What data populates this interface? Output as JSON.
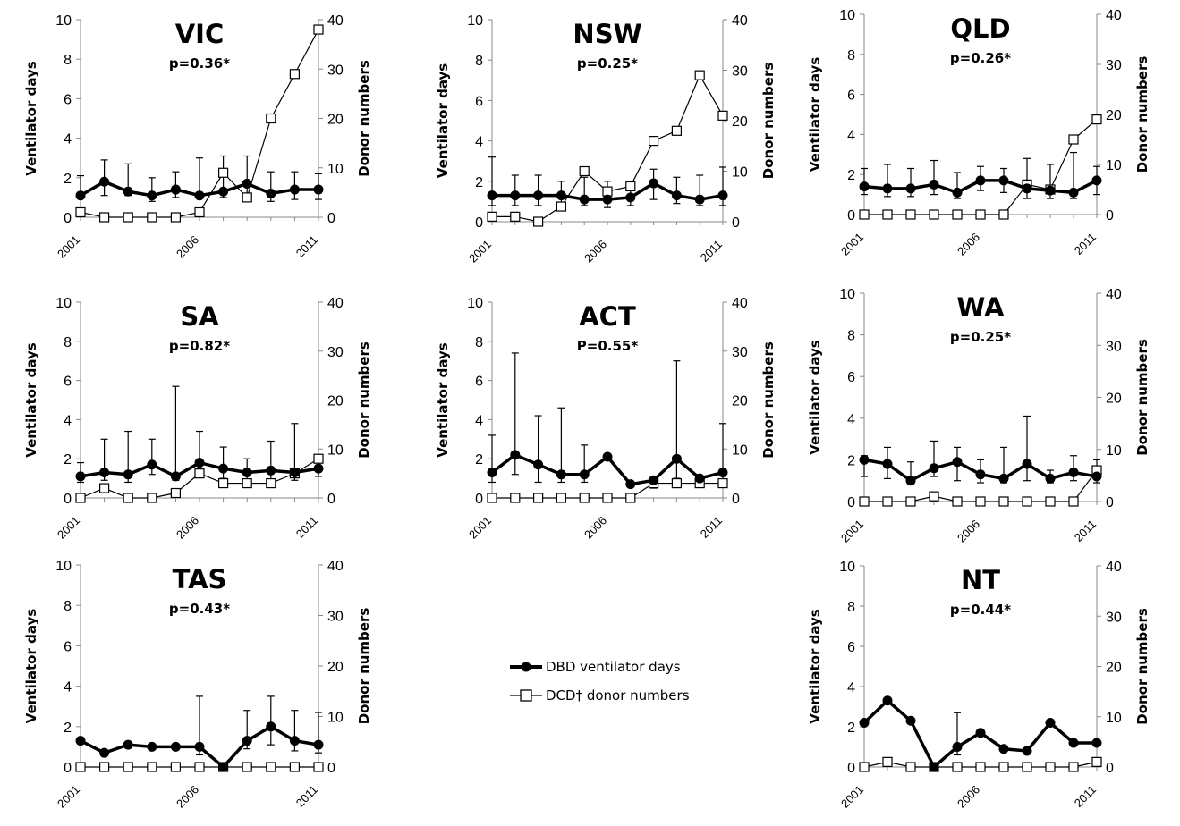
{
  "chart_data": [
    {
      "type": "line",
      "title": "VIC",
      "subtitle": "p=0.36*",
      "ylabel": "Ventilator days",
      "y2label": "Donor numbers",
      "ylim": [
        0,
        10
      ],
      "y2lim": [
        0,
        40
      ],
      "yticks": [
        "0",
        "2",
        "4",
        "6",
        "8",
        "10"
      ],
      "y2ticks": [
        "0",
        "10",
        "20",
        "30",
        "40"
      ],
      "xticks": [
        "2001",
        "2006",
        "2011"
      ],
      "x": [
        2001,
        2002,
        2003,
        2004,
        2005,
        2006,
        2007,
        2008,
        2009,
        2010,
        2011
      ],
      "series": [
        {
          "name": "DBD ventilator days",
          "axis": "left",
          "values": [
            1.1,
            1.8,
            1.3,
            1.1,
            1.4,
            1.1,
            1.3,
            1.7,
            1.2,
            1.4,
            1.4
          ],
          "error_upper": [
            2.1,
            2.9,
            2.7,
            2.0,
            2.3,
            3.0,
            3.1,
            3.1,
            2.3,
            2.3,
            2.2
          ],
          "error_lower": [
            1.1,
            1.1,
            1.1,
            0.8,
            1.0,
            1.1,
            1.0,
            1.0,
            0.8,
            0.9,
            0.9
          ]
        },
        {
          "name": "DCD† donor numbers",
          "axis": "right",
          "values": [
            1,
            0,
            0,
            0,
            0,
            1,
            9,
            4,
            20,
            29,
            38
          ]
        }
      ]
    },
    {
      "type": "line",
      "title": "NSW",
      "subtitle": "p=0.25*",
      "ylabel": "Ventilator days",
      "y2label": "Donor numbers",
      "ylim": [
        0,
        10
      ],
      "y2lim": [
        0,
        40
      ],
      "yticks": [
        "0",
        "2",
        "4",
        "6",
        "8",
        "10"
      ],
      "y2ticks": [
        "0",
        "10",
        "20",
        "30",
        "40"
      ],
      "xticks": [
        "2001",
        "2006",
        "2011"
      ],
      "x": [
        2001,
        2002,
        2003,
        2004,
        2005,
        2006,
        2007,
        2008,
        2009,
        2010,
        2011
      ],
      "series": [
        {
          "name": "DBD ventilator days",
          "axis": "left",
          "values": [
            1.3,
            1.3,
            1.3,
            1.3,
            1.1,
            1.1,
            1.2,
            1.9,
            1.3,
            1.1,
            1.3
          ],
          "error_upper": [
            3.2,
            2.3,
            2.3,
            2.0,
            2.2,
            2.0,
            2.0,
            2.6,
            2.2,
            2.3,
            2.7
          ],
          "error_lower": [
            0.8,
            0.8,
            0.8,
            0.9,
            0.8,
            0.7,
            0.8,
            1.1,
            0.9,
            0.8,
            0.8
          ]
        },
        {
          "name": "DCD† donor numbers",
          "axis": "right",
          "values": [
            1,
            1,
            0,
            3,
            10,
            6,
            7,
            16,
            18,
            29,
            21
          ]
        }
      ]
    },
    {
      "type": "line",
      "title": "QLD",
      "subtitle": "p=0.26*",
      "ylabel": "Ventilator days",
      "y2label": "Donor numbers",
      "ylim": [
        0,
        10
      ],
      "y2lim": [
        0,
        40
      ],
      "yticks": [
        "0",
        "2",
        "4",
        "6",
        "8",
        "10"
      ],
      "y2ticks": [
        "0",
        "10",
        "20",
        "30",
        "40"
      ],
      "xticks": [
        "2001",
        "2006",
        "2011"
      ],
      "x": [
        2001,
        2002,
        2003,
        2004,
        2005,
        2006,
        2007,
        2008,
        2009,
        2010,
        2011
      ],
      "series": [
        {
          "name": "DBD ventilator days",
          "axis": "left",
          "values": [
            1.4,
            1.3,
            1.3,
            1.5,
            1.1,
            1.7,
            1.7,
            1.3,
            1.2,
            1.1,
            1.7
          ],
          "error_upper": [
            2.3,
            2.5,
            2.3,
            2.7,
            2.1,
            2.4,
            2.3,
            2.8,
            2.5,
            3.1,
            2.4
          ],
          "error_lower": [
            1.0,
            0.9,
            0.9,
            1.0,
            0.8,
            1.2,
            1.1,
            0.8,
            0.8,
            0.8,
            1.0
          ]
        },
        {
          "name": "DCD† donor numbers",
          "axis": "right",
          "values": [
            0,
            0,
            0,
            0,
            0,
            0,
            0,
            6,
            5,
            15,
            19
          ]
        }
      ]
    },
    {
      "type": "line",
      "title": "SA",
      "subtitle": "p=0.82*",
      "ylabel": "Ventilator days",
      "y2label": "Donor numbers",
      "ylim": [
        0,
        10
      ],
      "y2lim": [
        0,
        40
      ],
      "yticks": [
        "0",
        "2",
        "4",
        "6",
        "8",
        "10"
      ],
      "y2ticks": [
        "0",
        "10",
        "20",
        "30",
        "40"
      ],
      "xticks": [
        "2001",
        "2006",
        "2011"
      ],
      "x": [
        2001,
        2002,
        2003,
        2004,
        2005,
        2006,
        2007,
        2008,
        2009,
        2010,
        2011
      ],
      "series": [
        {
          "name": "DBD ventilator days",
          "axis": "left",
          "values": [
            1.1,
            1.3,
            1.2,
            1.7,
            1.1,
            1.8,
            1.5,
            1.3,
            1.4,
            1.3,
            1.5
          ],
          "error_upper": [
            1.8,
            3.0,
            3.4,
            3.0,
            5.7,
            3.4,
            2.6,
            2.0,
            2.9,
            3.8,
            1.8
          ],
          "error_lower": [
            0.8,
            0.9,
            0.8,
            1.2,
            0.9,
            1.3,
            1.0,
            0.9,
            0.9,
            0.9,
            1.1
          ]
        },
        {
          "name": "DCD† donor numbers",
          "axis": "right",
          "values": [
            0,
            2,
            0,
            0,
            1,
            5,
            3,
            3,
            3,
            5,
            8
          ]
        }
      ]
    },
    {
      "type": "line",
      "title": "ACT",
      "subtitle": "P=0.55*",
      "ylabel": "Ventilator days",
      "y2label": "Donor numbers",
      "ylim": [
        0,
        10
      ],
      "y2lim": [
        0,
        40
      ],
      "yticks": [
        "0",
        "2",
        "4",
        "6",
        "8",
        "10"
      ],
      "y2ticks": [
        "0",
        "10",
        "20",
        "30",
        "40"
      ],
      "xticks": [
        "2001",
        "2006",
        "2011"
      ],
      "x": [
        2001,
        2002,
        2003,
        2004,
        2005,
        2006,
        2007,
        2008,
        2009,
        2010,
        2011
      ],
      "series": [
        {
          "name": "DBD ventilator days",
          "axis": "left",
          "values": [
            1.3,
            2.2,
            1.7,
            1.2,
            1.2,
            2.1,
            0.7,
            0.9,
            2.0,
            1.0,
            1.3
          ],
          "error_upper": [
            3.2,
            7.4,
            4.2,
            4.6,
            2.7,
            2.1,
            0.7,
            1.0,
            7.0,
            1.0,
            3.8
          ],
          "error_lower": [
            0.8,
            1.2,
            0.8,
            0.8,
            0.8,
            2.1,
            0.7,
            0.5,
            1.0,
            0.8,
            0.9
          ]
        },
        {
          "name": "DCD† donor numbers",
          "axis": "right",
          "values": [
            0,
            0,
            0,
            0,
            0,
            0,
            0,
            3,
            3,
            3,
            3
          ]
        }
      ]
    },
    {
      "type": "line",
      "title": "WA",
      "subtitle": "p=0.25*",
      "ylabel": "Ventilator days",
      "y2label": "Donor numbers",
      "ylim": [
        0,
        10
      ],
      "y2lim": [
        0,
        40
      ],
      "yticks": [
        "0",
        "2",
        "4",
        "6",
        "8",
        "10"
      ],
      "y2ticks": [
        "0",
        "10",
        "20",
        "30",
        "40"
      ],
      "xticks": [
        "2001",
        "2006",
        "2011"
      ],
      "x": [
        2001,
        2002,
        2003,
        2004,
        2005,
        2006,
        2007,
        2008,
        2009,
        2010,
        2011
      ],
      "series": [
        {
          "name": "DBD ventilator days",
          "axis": "left",
          "values": [
            2.0,
            1.8,
            1.0,
            1.6,
            1.9,
            1.3,
            1.1,
            1.8,
            1.1,
            1.4,
            1.2
          ],
          "error_upper": [
            2.2,
            2.6,
            1.9,
            2.9,
            2.6,
            2.0,
            2.6,
            4.1,
            1.5,
            2.2,
            2.0
          ],
          "error_lower": [
            1.2,
            1.1,
            0.8,
            1.2,
            1.0,
            0.9,
            0.9,
            1.0,
            0.9,
            1.0,
            0.9
          ]
        },
        {
          "name": "DCD† donor numbers",
          "axis": "right",
          "values": [
            0,
            0,
            0,
            1,
            0,
            0,
            0,
            0,
            0,
            0,
            6
          ]
        }
      ]
    },
    {
      "type": "line",
      "title": "TAS",
      "subtitle": "p=0.43*",
      "ylabel": "Ventilator days",
      "y2label": "Donor numbers",
      "ylim": [
        0,
        10
      ],
      "y2lim": [
        0,
        40
      ],
      "yticks": [
        "0",
        "2",
        "4",
        "6",
        "8",
        "10"
      ],
      "y2ticks": [
        "0",
        "10",
        "20",
        "30",
        "40"
      ],
      "xticks": [
        "2001",
        "2006",
        "2011"
      ],
      "x": [
        2001,
        2002,
        2003,
        2004,
        2005,
        2006,
        2007,
        2008,
        2009,
        2010,
        2011
      ],
      "series": [
        {
          "name": "DBD ventilator days",
          "axis": "left",
          "values": [
            1.3,
            0.7,
            1.1,
            1.0,
            1.0,
            1.0,
            0.0,
            1.3,
            2.0,
            1.3,
            1.1
          ],
          "error_upper": [
            1.3,
            0.7,
            1.1,
            1.0,
            1.0,
            3.5,
            0.0,
            2.8,
            3.5,
            2.8,
            2.7
          ],
          "error_lower": [
            1.3,
            0.7,
            1.1,
            1.0,
            1.0,
            0.6,
            0.0,
            0.9,
            1.1,
            0.8,
            0.7
          ]
        },
        {
          "name": "DCD† donor numbers",
          "axis": "right",
          "values": [
            0,
            0,
            0,
            0,
            0,
            0,
            0,
            0,
            0,
            0,
            0
          ]
        }
      ]
    },
    {
      "type": "line",
      "title": "NT",
      "subtitle": "p=0.44*",
      "ylabel": "Ventilator days",
      "y2label": "Donor numbers",
      "ylim": [
        0,
        10
      ],
      "y2lim": [
        0,
        40
      ],
      "yticks": [
        "0",
        "2",
        "4",
        "6",
        "8",
        "10"
      ],
      "y2ticks": [
        "0",
        "10",
        "20",
        "30",
        "40"
      ],
      "xticks": [
        "2001",
        "2006",
        "2011"
      ],
      "x": [
        2001,
        2002,
        2003,
        2004,
        2005,
        2006,
        2007,
        2008,
        2009,
        2010,
        2011
      ],
      "series": [
        {
          "name": "DBD ventilator days",
          "axis": "left",
          "values": [
            2.2,
            3.3,
            2.3,
            0.0,
            1.0,
            1.7,
            0.9,
            0.8,
            2.2,
            1.2,
            1.2
          ],
          "error_upper": [
            2.2,
            3.3,
            2.3,
            0.0,
            2.7,
            1.7,
            0.9,
            0.8,
            2.2,
            1.2,
            1.2
          ],
          "error_lower": [
            2.2,
            3.3,
            2.3,
            0.0,
            0.6,
            1.7,
            0.9,
            0.8,
            2.2,
            1.2,
            1.2
          ]
        },
        {
          "name": "DCD† donor numbers",
          "axis": "right",
          "values": [
            0,
            1,
            0,
            0,
            0,
            0,
            0,
            0,
            0,
            0,
            1
          ]
        }
      ]
    }
  ],
  "legend": {
    "dbd_label": "DBD ventilator days",
    "dcd_label": "DCD† donor numbers"
  }
}
